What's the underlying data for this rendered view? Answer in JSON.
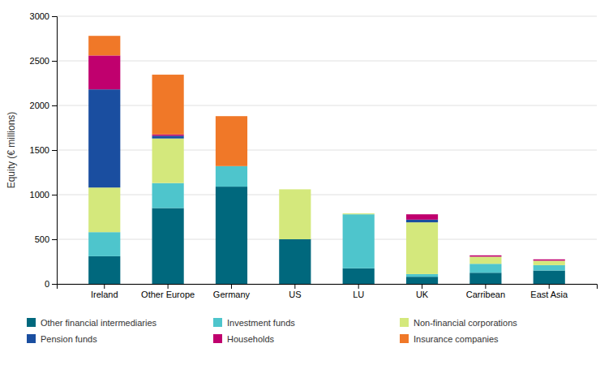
{
  "chart_data": {
    "type": "bar",
    "stacked": true,
    "categories": [
      "Ireland",
      "Other Europe",
      "Germany",
      "US",
      "LU",
      "UK",
      "Carribean",
      "East Asia"
    ],
    "series": [
      {
        "name": "Other financial intermediaries",
        "color": "#00687d",
        "values": [
          310,
          850,
          1090,
          500,
          175,
          80,
          125,
          150
        ]
      },
      {
        "name": "Investment funds",
        "color": "#4ec5cc",
        "values": [
          270,
          280,
          230,
          0,
          605,
          30,
          100,
          60
        ]
      },
      {
        "name": "Non-financial corporations",
        "color": "#d4e87c",
        "values": [
          500,
          500,
          0,
          560,
          10,
          580,
          80,
          50
        ]
      },
      {
        "name": "Pension funds",
        "color": "#1a4ea0",
        "values": [
          1100,
          30,
          0,
          0,
          0,
          30,
          0,
          0
        ]
      },
      {
        "name": "Households",
        "color": "#c0006e",
        "values": [
          380,
          15,
          0,
          0,
          0,
          60,
          15,
          15
        ]
      },
      {
        "name": "Insurance companies",
        "color": "#f07828",
        "values": [
          220,
          670,
          560,
          0,
          0,
          0,
          0,
          0
        ]
      }
    ],
    "ylabel": "Equity (€ millions)",
    "ylim": [
      0,
      3000
    ],
    "yticks": [
      0,
      500,
      1000,
      1500,
      2000,
      2500,
      3000
    ],
    "grid": true,
    "legend": "bottom"
  }
}
